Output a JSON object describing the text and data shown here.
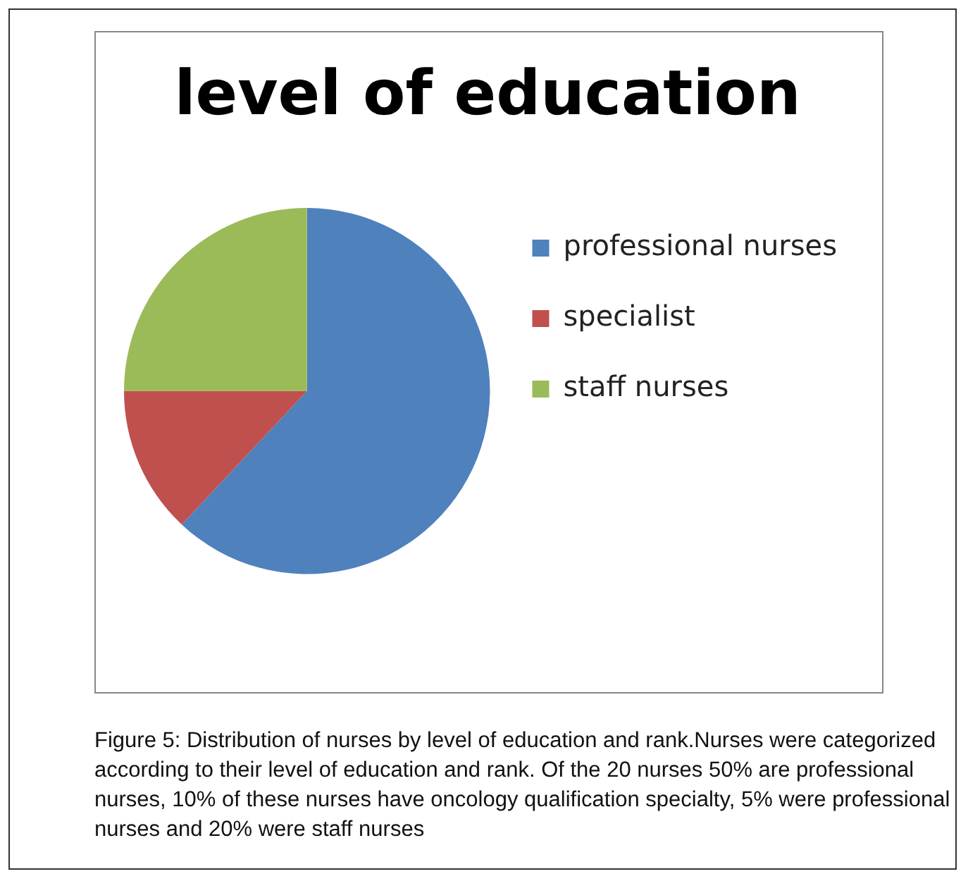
{
  "chart_data": {
    "type": "pie",
    "title": "level of education",
    "categories": [
      "professional nurses",
      "specialist",
      "staff nurses"
    ],
    "values": [
      62,
      13,
      25
    ],
    "colors": [
      "#4f81bd",
      "#c0504d",
      "#9bbb59"
    ],
    "legend": "right",
    "annotations": [
      "Figure 5: Distribution of nurses by level of education and rank.Nurses were categorized according to their level of education and rank. Of the 20 nurses 50% are professional nurses, 10% of these nurses have oncology qualification specialty, 5% were professional nurses and 20% were staff nurses"
    ]
  }
}
